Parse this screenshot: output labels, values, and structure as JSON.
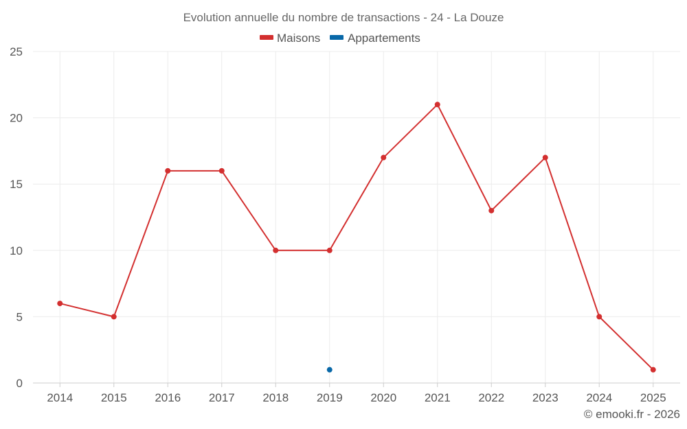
{
  "chart_data": {
    "type": "line",
    "title": "Evolution annuelle du nombre de transactions - 24 - La Douze",
    "categories": [
      "2014",
      "2015",
      "2016",
      "2017",
      "2018",
      "2019",
      "2020",
      "2021",
      "2022",
      "2023",
      "2024",
      "2025"
    ],
    "ylim": [
      0,
      25
    ],
    "yticks": [
      0,
      5,
      10,
      15,
      20,
      25
    ],
    "grid": true,
    "legend_position": "top-center",
    "series": [
      {
        "name": "Maisons",
        "color": "#d32f2f",
        "values": [
          6,
          5,
          16,
          16,
          10,
          10,
          17,
          21,
          13,
          17,
          5,
          1
        ]
      },
      {
        "name": "Appartements",
        "color": "#0868a8",
        "values": [
          null,
          null,
          null,
          null,
          null,
          1,
          null,
          null,
          null,
          null,
          null,
          null
        ]
      }
    ],
    "credit": "© emooki.fr - 2026"
  }
}
